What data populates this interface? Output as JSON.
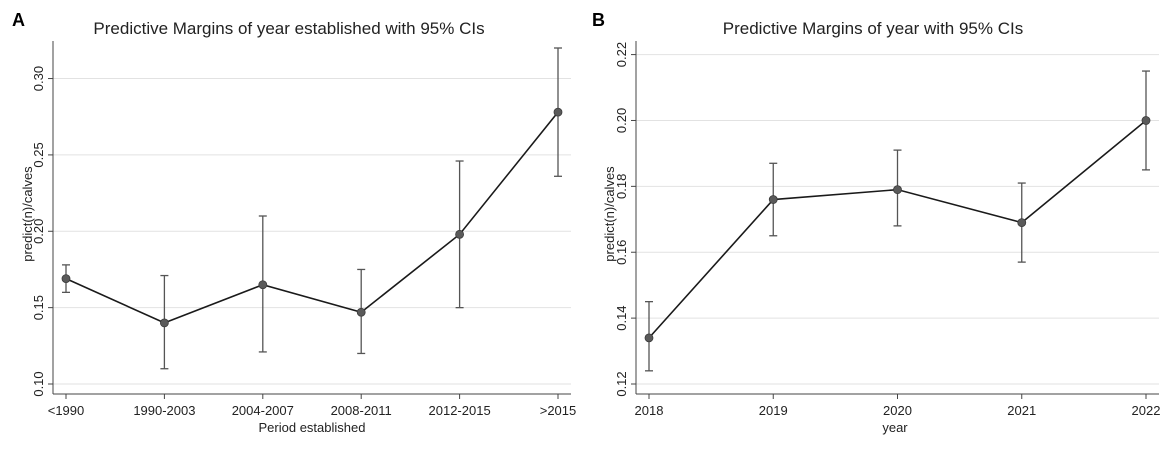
{
  "chart_data": [
    {
      "panel": "A",
      "type": "line",
      "title": "Predictive Margins of year established with 95% CIs",
      "xlabel": "Period established",
      "ylabel": "predict(n)/calves",
      "categories": [
        "<1990",
        "1990-2003",
        "2004-2007",
        "2008-2011",
        "2012-2015",
        ">2015"
      ],
      "values": [
        0.169,
        0.14,
        0.165,
        0.147,
        0.198,
        0.278
      ],
      "ci_lower": [
        0.16,
        0.11,
        0.121,
        0.12,
        0.15,
        0.236
      ],
      "ci_upper": [
        0.178,
        0.171,
        0.21,
        0.175,
        0.246,
        0.32
      ],
      "ylim": [
        0.1,
        0.32
      ],
      "yticks": [
        0.1,
        0.15,
        0.2,
        0.25,
        0.3
      ],
      "ytick_labels": [
        "0.10",
        "0.15",
        "0.20",
        "0.25",
        "0.30"
      ],
      "grid": true
    },
    {
      "panel": "B",
      "type": "line",
      "title": "Predictive Margins of year with 95% CIs",
      "xlabel": "year",
      "ylabel": "predict(n)/calves",
      "categories": [
        "2018",
        "2019",
        "2020",
        "2021",
        "2022"
      ],
      "values": [
        0.134,
        0.176,
        0.179,
        0.169,
        0.2
      ],
      "ci_lower": [
        0.124,
        0.165,
        0.168,
        0.157,
        0.185
      ],
      "ci_upper": [
        0.145,
        0.187,
        0.191,
        0.181,
        0.215
      ],
      "ylim": [
        0.12,
        0.222
      ],
      "yticks": [
        0.12,
        0.14,
        0.16,
        0.18,
        0.2,
        0.22
      ],
      "ytick_labels": [
        "0.12",
        "0.14",
        "0.16",
        "0.18",
        "0.20",
        "0.22"
      ],
      "grid": true
    }
  ]
}
